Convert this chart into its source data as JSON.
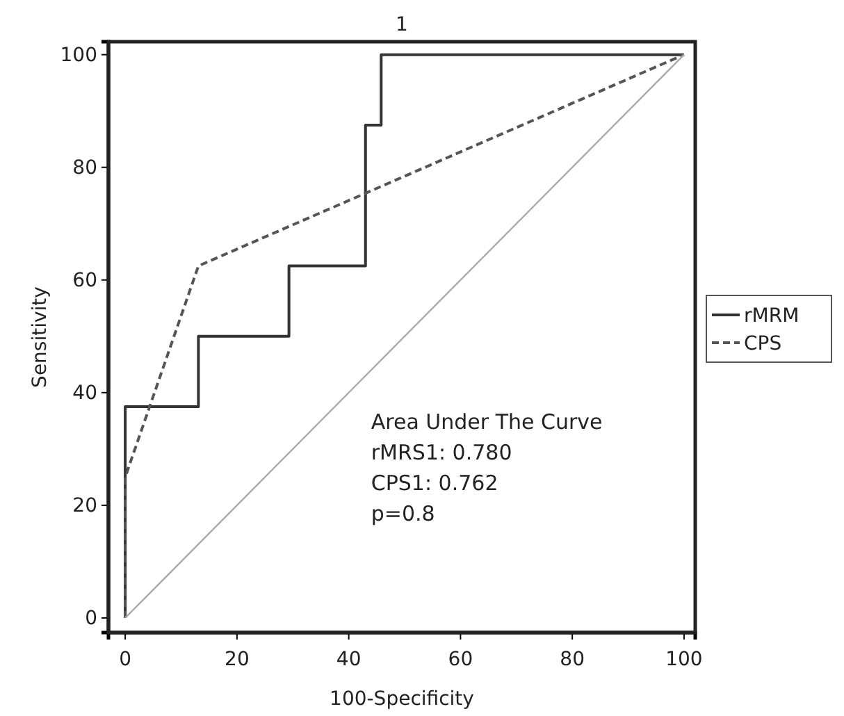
{
  "chart_data": {
    "type": "line",
    "title": "1",
    "xlabel": "100-Specificity",
    "ylabel": "Sensitivity",
    "xlim": [
      -3,
      102
    ],
    "ylim": [
      -2.6,
      102.3
    ],
    "xticks": [
      0,
      20,
      40,
      60,
      80,
      100
    ],
    "yticks": [
      0,
      20,
      40,
      60,
      80,
      100
    ],
    "grid": false,
    "legend": "right",
    "marker": "none",
    "series": [
      {
        "name": "rMRM",
        "color": "#333333",
        "line_style": "solid",
        "x": [
          0,
          0,
          13.1,
          13.1,
          29.3,
          29.3,
          43,
          43,
          45.8,
          45.8,
          100
        ],
        "values": [
          0,
          37.5,
          37.5,
          50,
          50,
          62.5,
          62.5,
          87.5,
          87.5,
          100,
          100
        ]
      },
      {
        "name": "CPS",
        "color": "#555555",
        "line_style": "dashed",
        "x": [
          0,
          0,
          13.1,
          100
        ],
        "values": [
          0,
          25,
          62.5,
          100
        ]
      },
      {
        "color": "#aaaaaa",
        "line_style": "solid",
        "x": [
          0,
          100
        ],
        "values": [
          0,
          100
        ]
      }
    ],
    "annotations": [
      "Area Under The Curve",
      "rMRS1: 0.780",
      "CPS1: 0.762",
      "p=0.8"
    ]
  }
}
